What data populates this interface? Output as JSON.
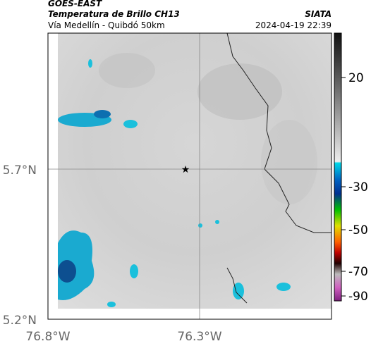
{
  "header": {
    "satellite": "GOES-EAST",
    "product": "Temperatura de Brillo CH13",
    "source": "SIATA",
    "route": "Vía Medellín - Quibdó 50km",
    "timestamp": "2024-04-19 22:39"
  },
  "axes": {
    "lat_labels": [
      "5.7°N",
      "5.2°N"
    ],
    "lon_labels": [
      "76.8°W",
      "76.3°W"
    ]
  },
  "colorbar": {
    "ticks": [
      "20",
      "-30",
      "-50",
      "-70",
      "-90"
    ]
  }
}
